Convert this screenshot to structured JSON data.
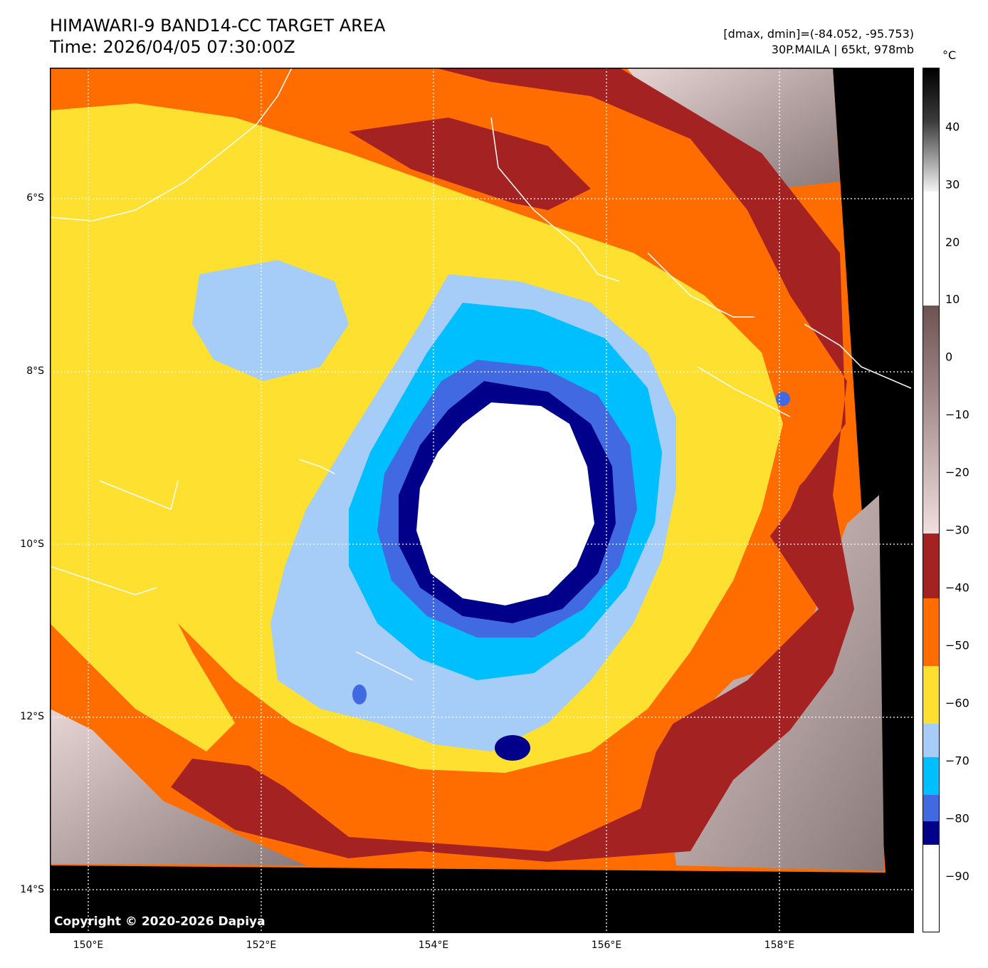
{
  "header": {
    "title_line1": "HIMAWARI-9 BAND14-CC TARGET AREA",
    "title_line2": "Time: 2026/04/05 07:30:00Z",
    "dminmax": "[dmax, dmin]=(-84.052, -95.753)",
    "storm_info": "30P.MAILA | 65kt, 978mb"
  },
  "axes": {
    "lat_labels": [
      "6°S",
      "8°S",
      "10°S",
      "12°S",
      "14°S"
    ],
    "lon_labels": [
      "150°E",
      "152°E",
      "154°E",
      "156°E",
      "158°E"
    ]
  },
  "colorbar": {
    "unit": "°C",
    "ticks": [
      "40",
      "30",
      "20",
      "10",
      "0",
      "−10",
      "−20",
      "−30",
      "−40",
      "−50",
      "−60",
      "−70",
      "−80",
      "−90"
    ],
    "colors": {
      "white_lt_-85": "#ffffff",
      "navy_-85_-80": "#00008b",
      "royal_-80_-75": "#4169e1",
      "deepsky_-75_-70": "#00bfff",
      "lightblue_-70_-65": "#a6cdf7",
      "yellow_-65_-55": "#fde030",
      "orange_-55_-45": "#ff6d00",
      "brown_-45_-35": "#a42222",
      "gray_scale_top": "#000000"
    }
  },
  "copyright": "Copyright © 2020-2026 Dapiya"
}
